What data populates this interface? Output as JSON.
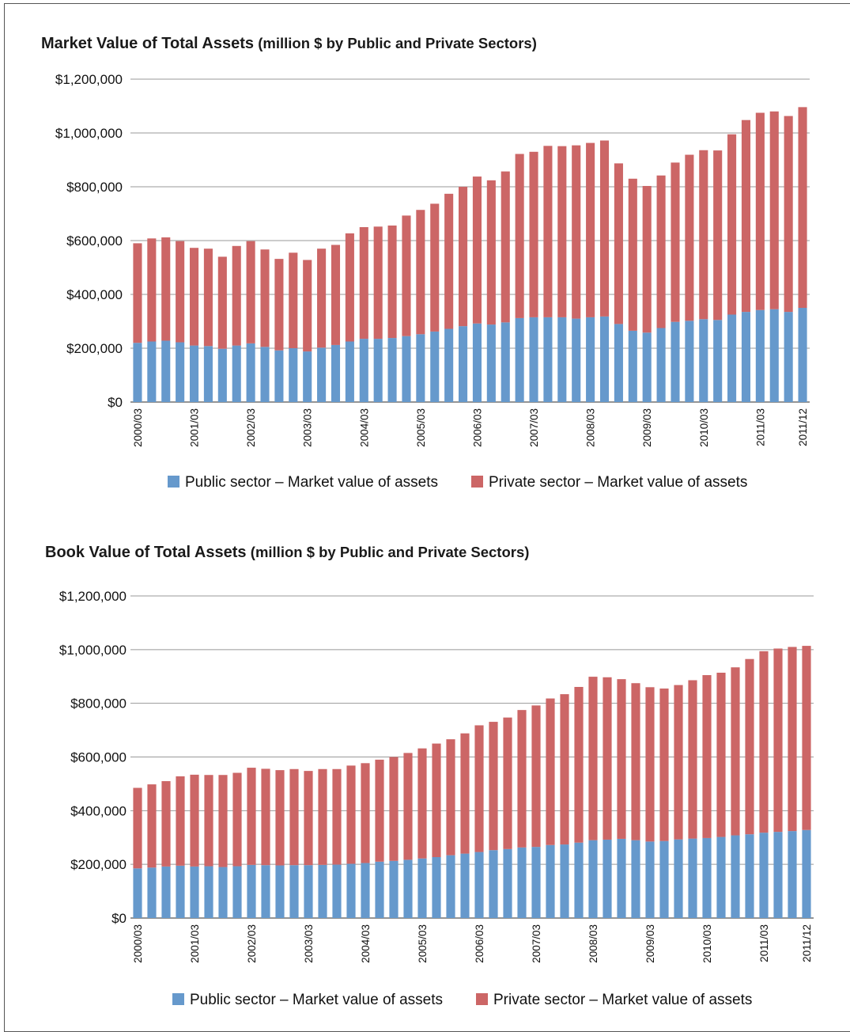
{
  "colors": {
    "public": "#6699cc",
    "private": "#cc6666",
    "grid": "#999999"
  },
  "chart_data": [
    {
      "type": "bar",
      "stacked": true,
      "title": "Market Value of Total Assets",
      "subtitle": "(million $ by Public and Private  Sectors)",
      "ylim": [
        0,
        1200000
      ],
      "y_ticks": [
        "$0",
        "$200,000",
        "$400,000",
        "$600,000",
        "$800,000",
        "$1,000,000",
        "$1,200,000"
      ],
      "x_tick_labels": [
        "2000/03",
        "2001/03",
        "2002/03",
        "2003/03",
        "2004/03",
        "2005/03",
        "2006/03",
        "2007/03",
        "2008/03",
        "2009/03",
        "2010/03",
        "2011/03",
        "2011/12"
      ],
      "x_tick_label_indices": [
        0,
        4,
        8,
        12,
        16,
        20,
        24,
        28,
        32,
        36,
        40,
        44,
        47
      ],
      "legend": "bottom",
      "grid": true,
      "series": [
        {
          "name": "Public sector – Market value of assets",
          "values": [
            220000,
            225000,
            228000,
            222000,
            210000,
            208000,
            198000,
            210000,
            218000,
            205000,
            192000,
            200000,
            188000,
            202000,
            212000,
            225000,
            235000,
            235000,
            238000,
            245000,
            252000,
            262000,
            272000,
            282000,
            292000,
            288000,
            296000,
            312000,
            315000,
            315000,
            315000,
            310000,
            315000,
            318000,
            290000,
            265000,
            258000,
            275000,
            298000,
            302000,
            308000,
            305000,
            325000,
            335000,
            342000,
            345000,
            335000,
            350000
          ]
        },
        {
          "name": "Private sector – Market value of assets",
          "values": [
            370000,
            383000,
            384000,
            376000,
            363000,
            362000,
            342000,
            370000,
            380000,
            362000,
            340000,
            355000,
            340000,
            368000,
            372000,
            402000,
            415000,
            417000,
            418000,
            448000,
            462000,
            475000,
            502000,
            518000,
            546000,
            536000,
            561000,
            610000,
            615000,
            637000,
            636000,
            644000,
            648000,
            654000,
            597000,
            565000,
            545000,
            567000,
            592000,
            617000,
            628000,
            630000,
            670000,
            713000,
            733000,
            735000,
            728000,
            746000
          ]
        }
      ]
    },
    {
      "type": "bar",
      "stacked": true,
      "title": "Book Value of Total Assets",
      "subtitle": "(million $ by Public and Private  Sectors)",
      "ylim": [
        0,
        1200000
      ],
      "y_ticks": [
        "$0",
        "$200,000",
        "$400,000",
        "$600,000",
        "$800,000",
        "$1,000,000",
        "$1,200,000"
      ],
      "x_tick_labels": [
        "2000/03",
        "2001/03",
        "2002/03",
        "2003/03",
        "2004/03",
        "2005/03",
        "2006/03",
        "2007/03",
        "2008/03",
        "2009/03",
        "2010/03",
        "2011/03",
        "2011/12"
      ],
      "x_tick_label_indices": [
        0,
        4,
        8,
        12,
        16,
        20,
        24,
        28,
        32,
        36,
        40,
        44,
        47
      ],
      "legend": "bottom",
      "grid": true,
      "series": [
        {
          "name": "Public sector – Market value of assets",
          "values": [
            185000,
            188000,
            192000,
            195000,
            192000,
            193000,
            190000,
            193000,
            198000,
            197000,
            196000,
            197000,
            197000,
            198000,
            199000,
            202000,
            205000,
            210000,
            213000,
            217000,
            222000,
            227000,
            234000,
            240000,
            246000,
            253000,
            257000,
            263000,
            265000,
            272000,
            274000,
            281000,
            290000,
            292000,
            295000,
            290000,
            285000,
            287000,
            293000,
            296000,
            298000,
            302000,
            308000,
            312000,
            318000,
            321000,
            324000,
            328000
          ]
        },
        {
          "name": "Private sector – Market value of assets",
          "values": [
            300000,
            310000,
            318000,
            333000,
            342000,
            340000,
            343000,
            348000,
            362000,
            359000,
            355000,
            358000,
            351000,
            357000,
            356000,
            366000,
            372000,
            380000,
            387000,
            398000,
            410000,
            423000,
            432000,
            448000,
            472000,
            478000,
            490000,
            512000,
            527000,
            546000,
            560000,
            580000,
            609000,
            605000,
            595000,
            585000,
            575000,
            568000,
            575000,
            590000,
            607000,
            612000,
            626000,
            653000,
            676000,
            683000,
            686000,
            686000
          ]
        }
      ]
    }
  ]
}
